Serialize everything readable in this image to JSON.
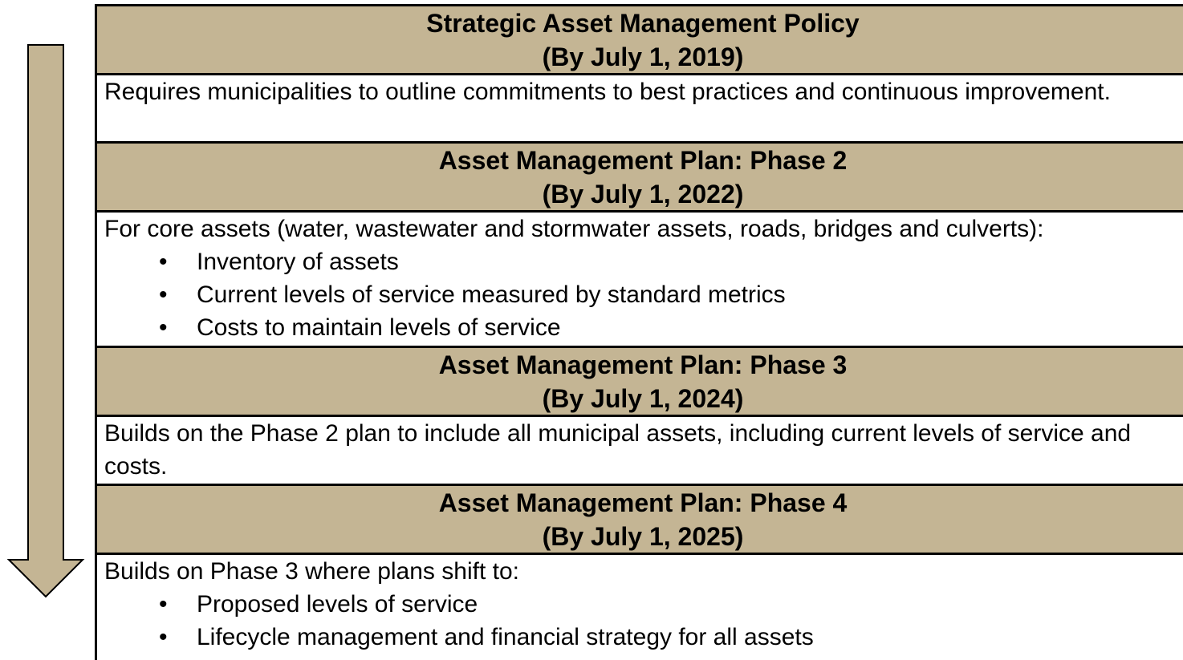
{
  "sections": [
    {
      "title": "Strategic Asset Management Policy",
      "date": "(By July 1, 2019)",
      "text": "Requires municipalities to outline commitments to best practices and continuous improvement."
    },
    {
      "title": "Asset Management Plan: Phase 2",
      "date": "(By July 1, 2022)",
      "text": "For core assets (water, wastewater and stormwater assets, roads, bridges and culverts):",
      "bullets": [
        "Inventory of assets",
        "Current levels of service measured by standard metrics",
        "Costs to maintain levels of service"
      ]
    },
    {
      "title": "Asset Management Plan: Phase 3",
      "date": "(By July 1, 2024)",
      "text": "Builds on the Phase 2 plan to include all municipal assets, including current levels of service and costs."
    },
    {
      "title": "Asset Management Plan: Phase 4",
      "date": "(By July 1, 2025)",
      "text": "Builds on Phase 3 where plans shift to:",
      "bullets": [
        "Proposed levels of service",
        "Lifecycle management and financial strategy for all assets"
      ]
    }
  ]
}
